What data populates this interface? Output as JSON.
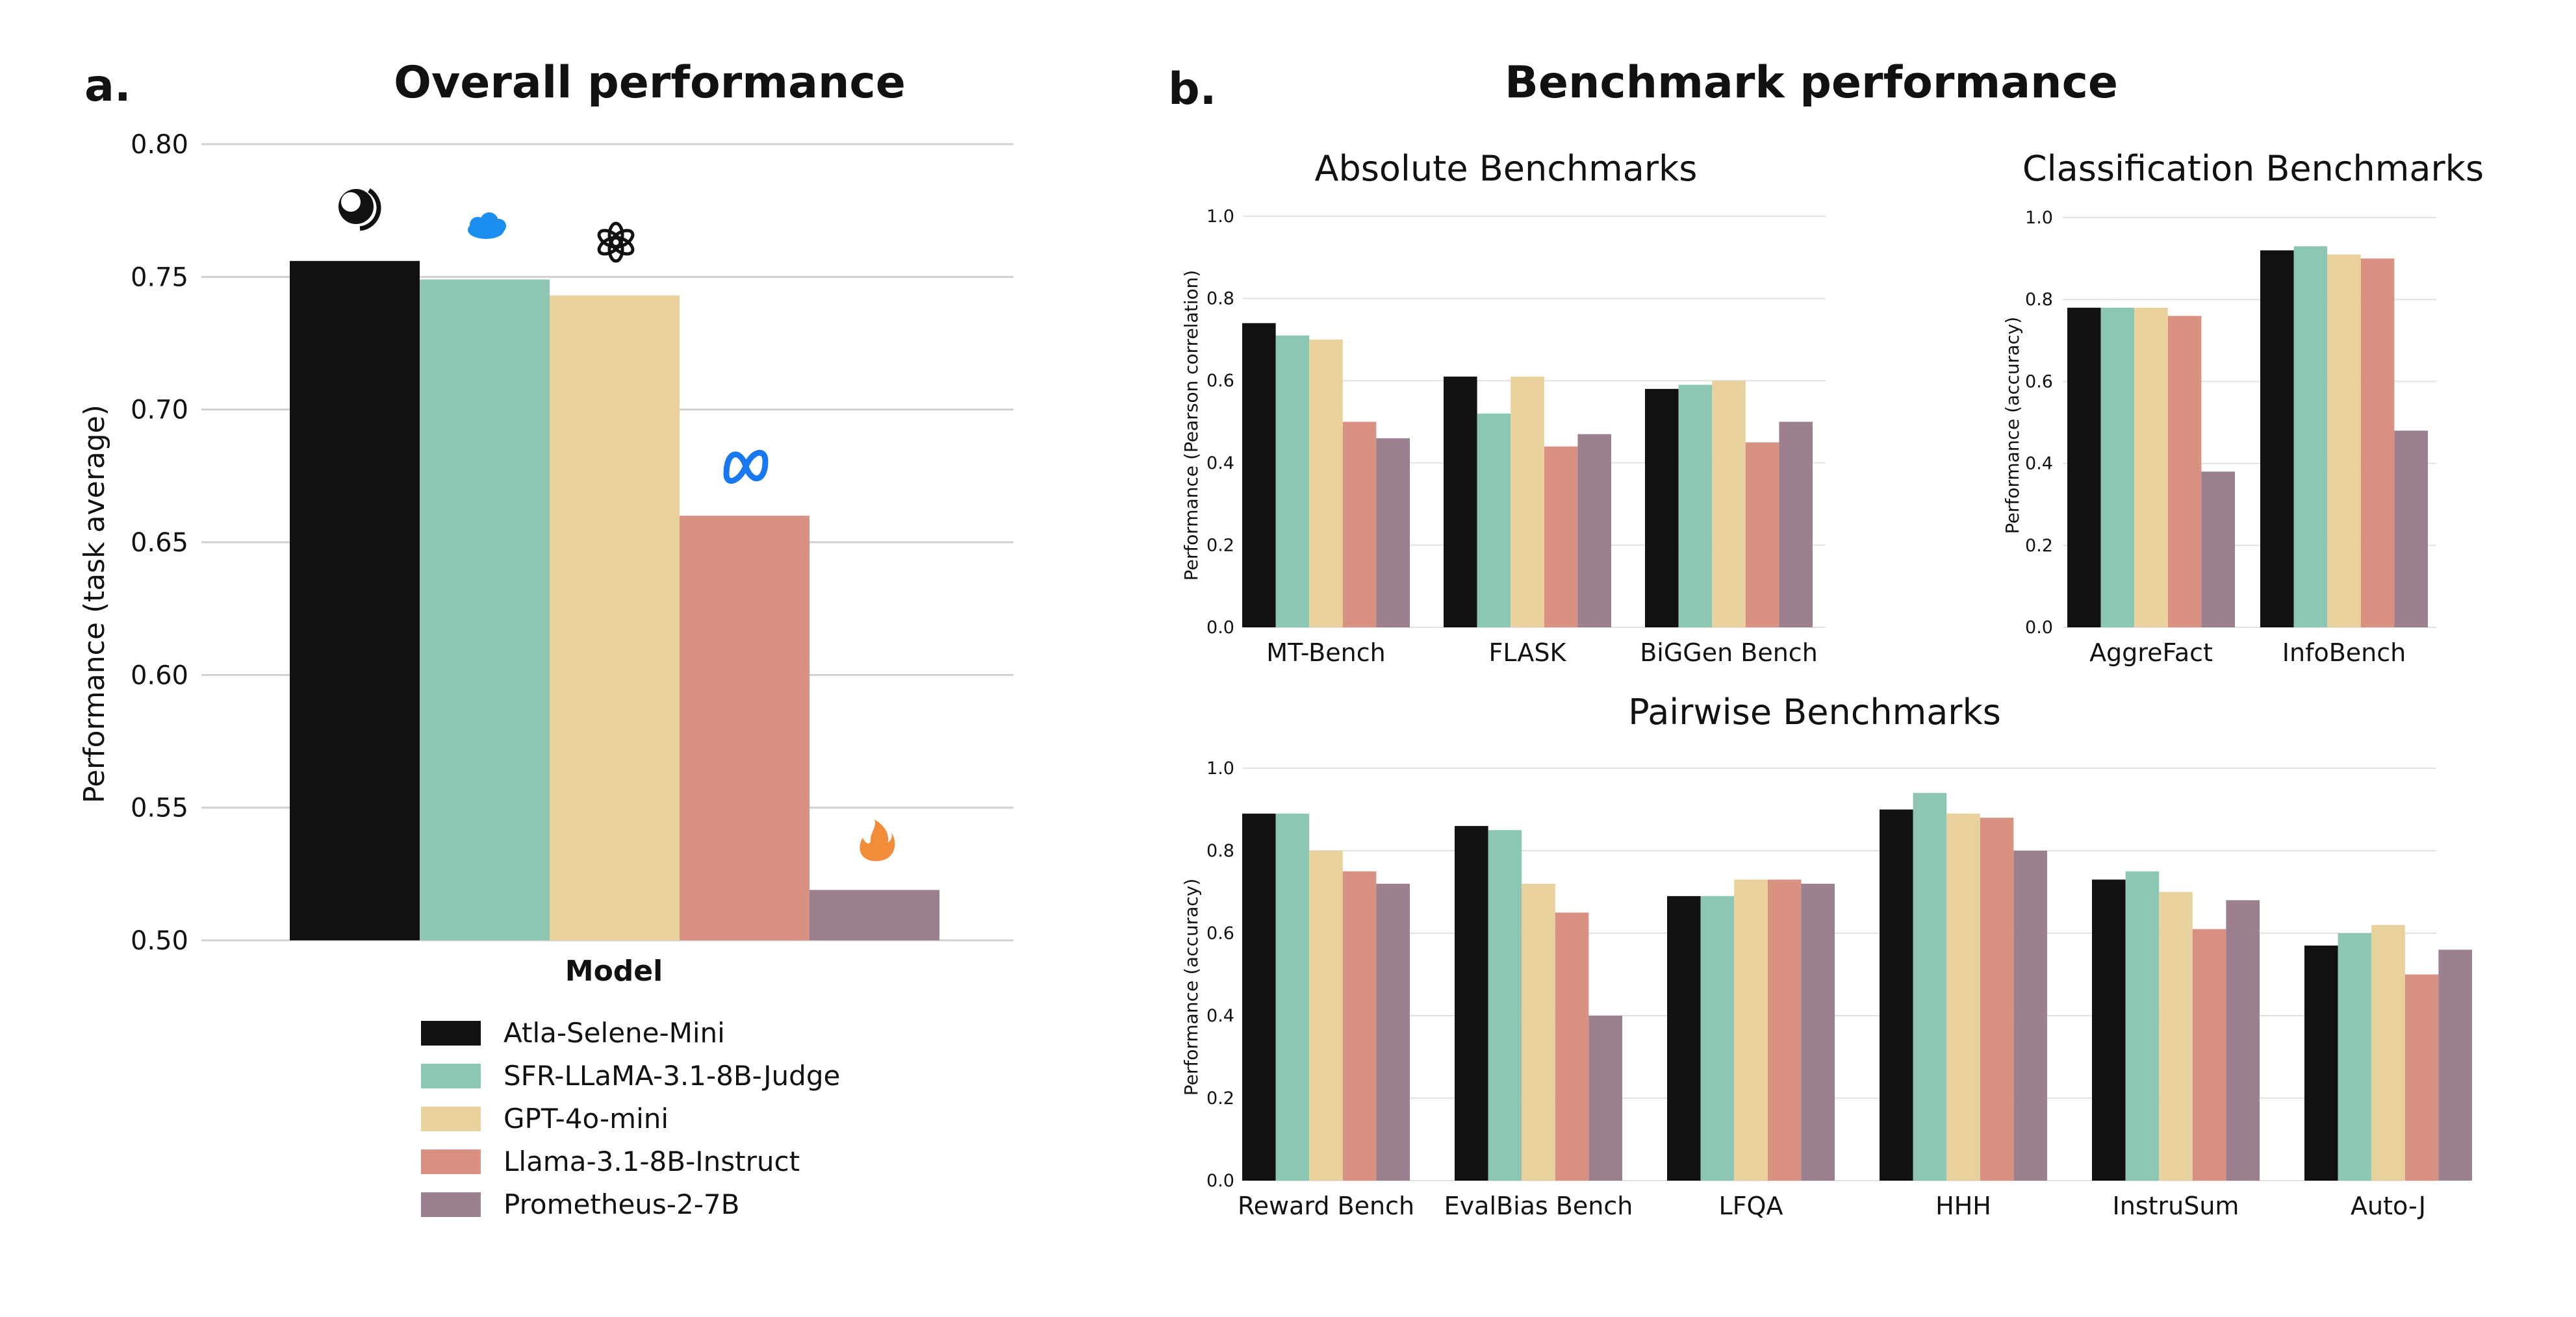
{
  "panel_labels": {
    "a": "a.",
    "b": "b."
  },
  "figure_b_title": "Benchmark performance",
  "colors": {
    "Atla-Selene-Mini": "#111111",
    "SFR-LLaMA-3.1-8B-Judge": "#8cc7b4",
    "GPT-4o-mini": "#e8d19d",
    "Llama-3.1-8B-Instruct": "#d99282",
    "Prometheus-2-7B": "#9d8090"
  },
  "legend": [
    "Atla-Selene-Mini",
    "SFR-LLaMA-3.1-8B-Judge",
    "GPT-4o-mini",
    "Llama-3.1-8B-Instruct",
    "Prometheus-2-7B"
  ],
  "logo_icons": [
    "atla-logo-icon",
    "salesforce-logo-icon",
    "openai-logo-icon",
    "meta-logo-icon",
    "prometheus-flame-icon"
  ],
  "chart_data": [
    {
      "id": "overall",
      "type": "bar",
      "title": "Overall performance",
      "xlabel": "Model",
      "ylabel": "Performance (task average)",
      "ylim": [
        0.5,
        0.8
      ],
      "yticks": [
        "0.50",
        "0.55",
        "0.60",
        "0.65",
        "0.70",
        "0.75",
        "0.80"
      ],
      "grid": true,
      "categories": [
        "Atla-Selene-Mini",
        "SFR-LLaMA-3.1-8B-Judge",
        "GPT-4o-mini",
        "Llama-3.1-8B-Instruct",
        "Prometheus-2-7B"
      ],
      "values": [
        0.756,
        0.749,
        0.743,
        0.66,
        0.519
      ]
    },
    {
      "id": "absolute",
      "type": "bar",
      "title": "Absolute Benchmarks",
      "ylabel": "Performance (Pearson correlation)",
      "ylim": [
        0,
        1.0
      ],
      "yticks": [
        "0.0",
        "0.2",
        "0.4",
        "0.6",
        "0.8",
        "1.0"
      ],
      "grid": true,
      "categories": [
        "MT-Bench",
        "FLASK",
        "BiGGen Bench"
      ],
      "series": [
        {
          "name": "Atla-Selene-Mini",
          "values": [
            0.74,
            0.61,
            0.58
          ]
        },
        {
          "name": "SFR-LLaMA-3.1-8B-Judge",
          "values": [
            0.71,
            0.52,
            0.59
          ]
        },
        {
          "name": "GPT-4o-mini",
          "values": [
            0.7,
            0.61,
            0.6
          ]
        },
        {
          "name": "Llama-3.1-8B-Instruct",
          "values": [
            0.5,
            0.44,
            0.45
          ]
        },
        {
          "name": "Prometheus-2-7B",
          "values": [
            0.46,
            0.47,
            0.5
          ]
        }
      ]
    },
    {
      "id": "classification",
      "type": "bar",
      "title": "Classification Benchmarks",
      "ylabel": "Performance (accuracy)",
      "ylim": [
        0,
        1.0
      ],
      "yticks": [
        "0.0",
        "0.2",
        "0.4",
        "0.6",
        "0.8",
        "1.0"
      ],
      "grid": true,
      "categories": [
        "AggreFact",
        "InfoBench"
      ],
      "series": [
        {
          "name": "Atla-Selene-Mini",
          "values": [
            0.78,
            0.92
          ]
        },
        {
          "name": "SFR-LLaMA-3.1-8B-Judge",
          "values": [
            0.78,
            0.93
          ]
        },
        {
          "name": "GPT-4o-mini",
          "values": [
            0.78,
            0.91
          ]
        },
        {
          "name": "Llama-3.1-8B-Instruct",
          "values": [
            0.76,
            0.9
          ]
        },
        {
          "name": "Prometheus-2-7B",
          "values": [
            0.38,
            0.48
          ]
        }
      ]
    },
    {
      "id": "pairwise",
      "type": "bar",
      "title": "Pairwise Benchmarks",
      "ylabel": "Performance (accuracy)",
      "ylim": [
        0,
        1.0
      ],
      "yticks": [
        "0.0",
        "0.2",
        "0.4",
        "0.6",
        "0.8",
        "1.0"
      ],
      "grid": true,
      "categories": [
        "Reward Bench",
        "EvalBias Bench",
        "LFQA",
        "HHH",
        "InstruSum",
        "Auto-J"
      ],
      "series": [
        {
          "name": "Atla-Selene-Mini",
          "values": [
            0.89,
            0.86,
            0.69,
            0.9,
            0.73,
            0.57
          ]
        },
        {
          "name": "SFR-LLaMA-3.1-8B-Judge",
          "values": [
            0.89,
            0.85,
            0.69,
            0.94,
            0.75,
            0.6
          ]
        },
        {
          "name": "GPT-4o-mini",
          "values": [
            0.8,
            0.72,
            0.73,
            0.89,
            0.7,
            0.62
          ]
        },
        {
          "name": "Llama-3.1-8B-Instruct",
          "values": [
            0.75,
            0.65,
            0.73,
            0.88,
            0.61,
            0.5
          ]
        },
        {
          "name": "Prometheus-2-7B",
          "values": [
            0.72,
            0.4,
            0.72,
            0.8,
            0.68,
            0.56
          ]
        }
      ]
    }
  ]
}
